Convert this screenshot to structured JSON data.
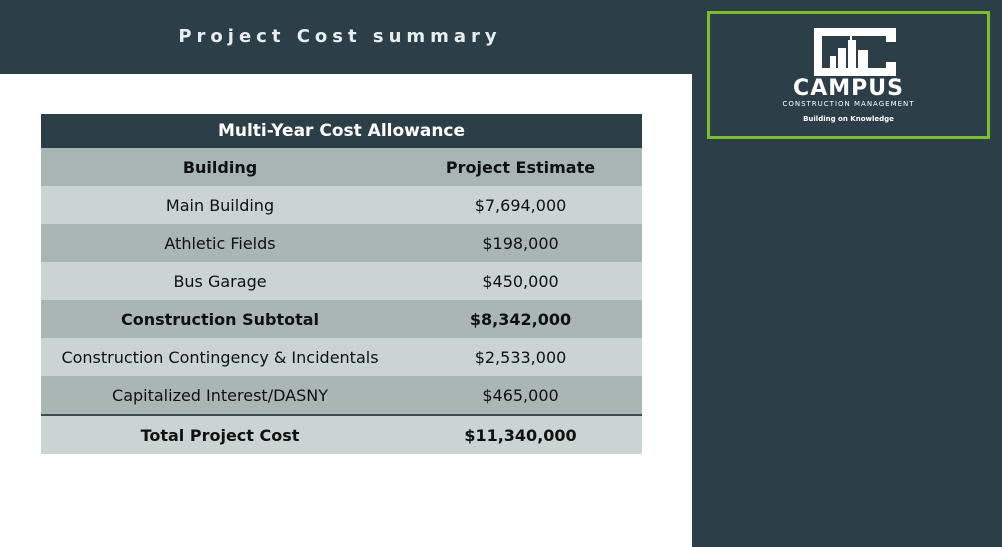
{
  "header": {
    "title": "Project Cost summary"
  },
  "logo": {
    "name": "CAMPUS",
    "subtitle": "CONSTRUCTION MANAGEMENT",
    "tagline": "Building on Knowledge"
  },
  "table": {
    "title": "Multi-Year Cost Allowance",
    "columns": [
      "Building",
      "Project Estimate"
    ],
    "rows": [
      [
        "Main Building",
        "$7,694,000"
      ],
      [
        "Athletic Fields",
        "$198,000"
      ],
      [
        "Bus Garage",
        "$450,000"
      ],
      [
        "Construction Subtotal",
        "$8,342,000"
      ],
      [
        "Construction Contingency & Incidentals",
        "$2,533,000"
      ],
      [
        "Capitalized Interest/DASNY",
        "$465,000"
      ],
      [
        "Total Project Cost",
        "$11,340,000"
      ]
    ]
  }
}
